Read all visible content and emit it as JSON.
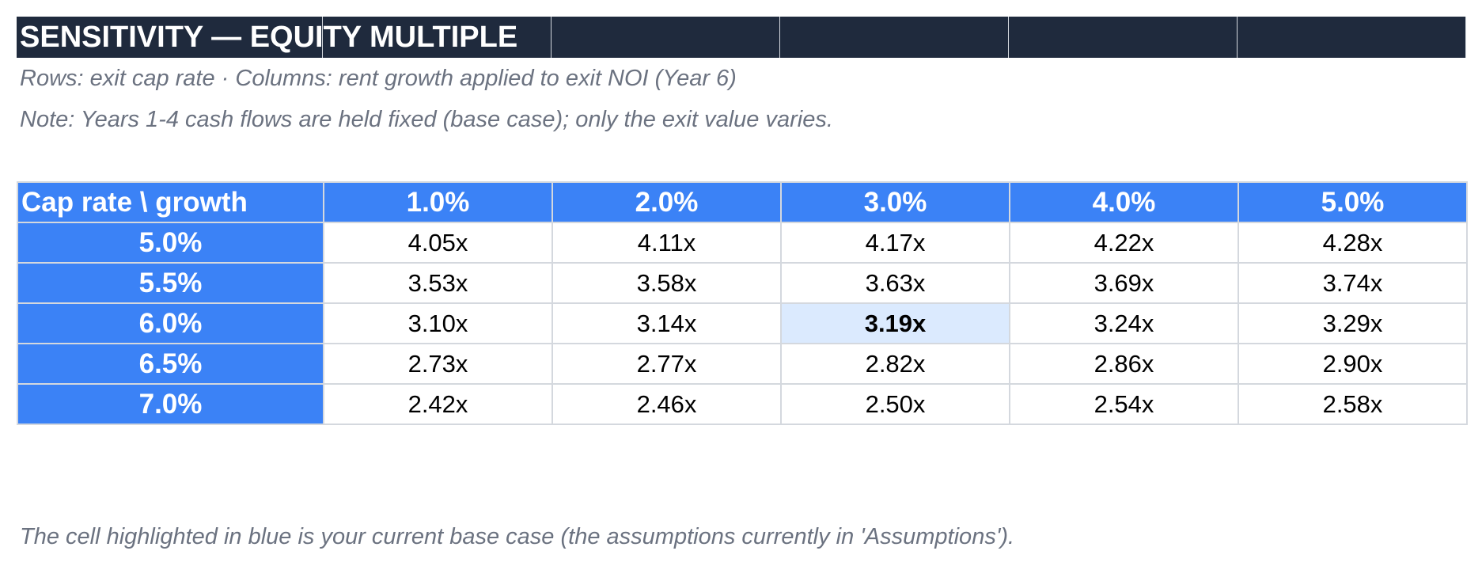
{
  "title": "SENSITIVITY — EQUITY MULTIPLE",
  "notes": {
    "axes": "Rows: exit cap rate · Columns: rent growth applied to exit NOI (Year 6)",
    "fixed": "Note: Years 1-4 cash flows are held fixed (base case); only the exit value varies."
  },
  "table": {
    "corner": "Cap rate \\ growth",
    "columns": [
      "1.0%",
      "2.0%",
      "3.0%",
      "4.0%",
      "5.0%"
    ],
    "rows": [
      {
        "label": "5.0%",
        "values": [
          "4.05x",
          "4.11x",
          "4.17x",
          "4.22x",
          "4.28x"
        ]
      },
      {
        "label": "5.5%",
        "values": [
          "3.53x",
          "3.58x",
          "3.63x",
          "3.69x",
          "3.74x"
        ]
      },
      {
        "label": "6.0%",
        "values": [
          "3.10x",
          "3.14x",
          "3.19x",
          "3.24x",
          "3.29x"
        ]
      },
      {
        "label": "6.5%",
        "values": [
          "2.73x",
          "2.77x",
          "2.82x",
          "2.86x",
          "2.90x"
        ]
      },
      {
        "label": "7.0%",
        "values": [
          "2.42x",
          "2.46x",
          "2.50x",
          "2.54x",
          "2.58x"
        ]
      }
    ],
    "base_case": {
      "row": 2,
      "col": 2
    }
  },
  "footer": "The cell highlighted in blue is your current base case (the assumptions currently in 'Assumptions').",
  "colors": {
    "title_bg": "#1f2a3d",
    "header_bg": "#3b82f6",
    "base_case_bg": "#dbeafe",
    "note_text": "#6b7280",
    "grid_line": "#d4d8de"
  }
}
